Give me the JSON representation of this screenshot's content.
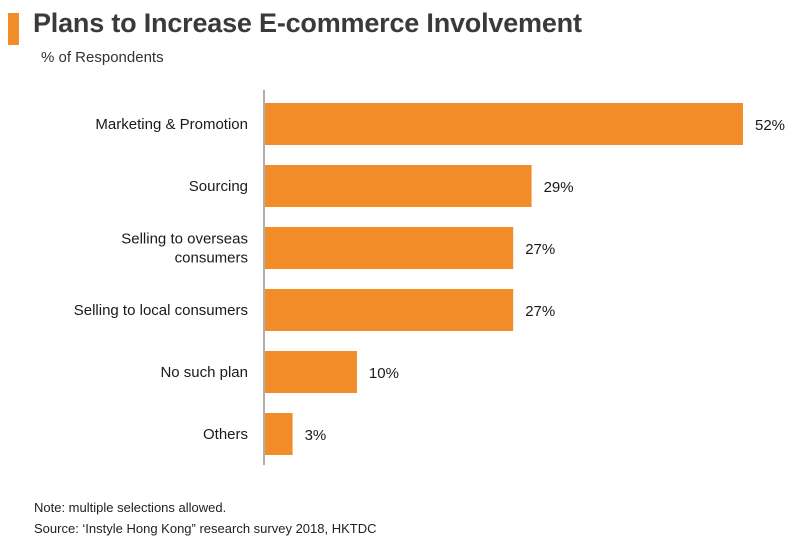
{
  "header": {
    "title": "Plans to Increase E-commerce Involvement",
    "subtitle": "% of Respondents"
  },
  "notes": {
    "note": "Note: multiple selections allowed.",
    "source": "Source: ‘Instyle Hong Kong” research survey 2018, HKTDC"
  },
  "colors": {
    "accent": "#f28c28",
    "bar": "#f28c28"
  },
  "chart_data": {
    "type": "bar",
    "orientation": "horizontal",
    "categories": [
      [
        "Marketing & Promotion"
      ],
      [
        "Sourcing"
      ],
      [
        "Selling to overseas",
        "consumers"
      ],
      [
        "Selling to local consumers"
      ],
      [
        "No such plan"
      ],
      [
        "Others"
      ]
    ],
    "values": [
      52,
      29,
      27,
      27,
      10,
      3
    ],
    "value_labels": [
      "52%",
      "29%",
      "27%",
      "27%",
      "10%",
      "3%"
    ],
    "xlim": [
      0,
      52
    ],
    "grid": false,
    "legend": "none"
  }
}
